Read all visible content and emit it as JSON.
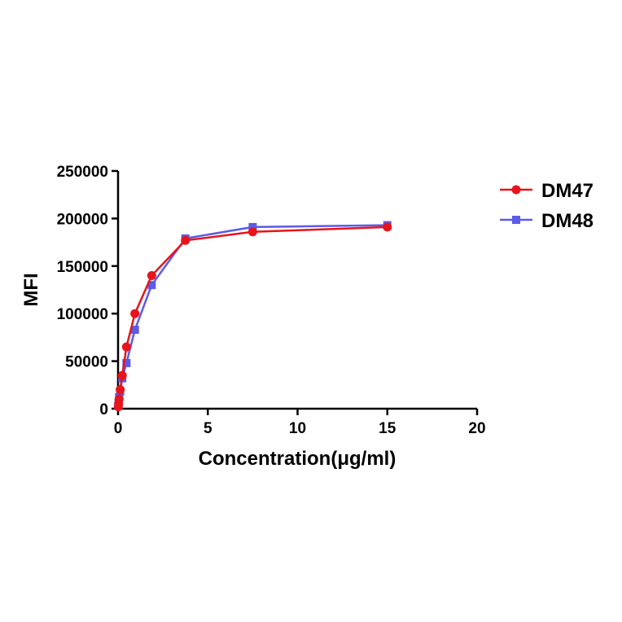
{
  "chart_data": {
    "type": "line",
    "title": "",
    "xlabel": "Concentration(μg/ml)",
    "ylabel": "MFI",
    "xlim": [
      0,
      20
    ],
    "ylim": [
      0,
      250000
    ],
    "x_ticks": [
      0,
      5,
      10,
      15,
      20
    ],
    "y_ticks": [
      0,
      50000,
      100000,
      150000,
      200000,
      250000
    ],
    "grid": false,
    "legend_position": "top-right",
    "series": [
      {
        "name": "DM47",
        "color": "#e8141b",
        "marker": "circle",
        "points": [
          [
            0.0146,
            2000
          ],
          [
            0.0293,
            5000
          ],
          [
            0.0586,
            10000
          ],
          [
            0.117,
            20000
          ],
          [
            0.234,
            35000
          ],
          [
            0.469,
            65000
          ],
          [
            0.938,
            100000
          ],
          [
            1.875,
            140000
          ],
          [
            3.75,
            177000
          ],
          [
            7.5,
            186000
          ],
          [
            15,
            191000
          ]
        ]
      },
      {
        "name": "DM48",
        "color": "#5b5be8",
        "marker": "square",
        "points": [
          [
            0.0146,
            3000
          ],
          [
            0.0293,
            6000
          ],
          [
            0.0586,
            12000
          ],
          [
            0.117,
            18000
          ],
          [
            0.234,
            32000
          ],
          [
            0.469,
            48000
          ],
          [
            0.938,
            83000
          ],
          [
            1.875,
            130000
          ],
          [
            3.75,
            179000
          ],
          [
            7.5,
            191000
          ],
          [
            15,
            193000
          ]
        ]
      }
    ]
  }
}
